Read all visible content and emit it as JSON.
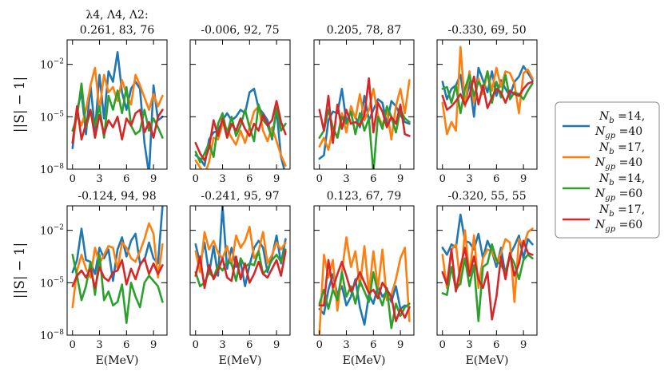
{
  "chart_data": {
    "type": "line",
    "xlabel": "E(MeV)",
    "ylabel": "||S| − 1|",
    "xlim": [
      -0.6,
      10.5
    ],
    "ylim_log10": [
      -8,
      -0.6
    ],
    "xticks": [
      0,
      3,
      6,
      9
    ],
    "yticks": [
      {
        "exp": -8,
        "label": "10−8"
      },
      {
        "exp": -5,
        "label": "10−5"
      },
      {
        "exp": -2,
        "label": "10−2"
      }
    ],
    "title_header": "λ4, Λ4, Λ2:",
    "legend": [
      {
        "line1": "Nb =14,",
        "line2": "Ngp =40",
        "color": "#1f77b4"
      },
      {
        "line1": "Nb =17,",
        "line2": "Ngp =40",
        "color": "#ff7f0e"
      },
      {
        "line1": "Nb =14,",
        "line2": "Ngp =60",
        "color": "#2ca02c"
      },
      {
        "line1": "Nb =17,",
        "line2": "Ngp =60",
        "color": "#d62728"
      }
    ],
    "x": [
      0,
      0.5,
      1,
      1.5,
      2,
      2.5,
      3,
      3.5,
      4,
      4.5,
      5,
      5.5,
      6,
      6.5,
      7,
      7.5,
      8,
      8.5,
      9,
      9.5,
      10
    ],
    "panels": [
      {
        "title": "0.261, 83, 76",
        "series": [
          {
            "name": "Nb=14, Ngp=40",
            "log10": [
              -6.8,
              -4.6,
              -3.6,
              -6.0,
              -3.2,
              -5.8,
              -2.6,
              -5.1,
              -2.4,
              -3.0,
              -1.3,
              -3.6,
              -4.6,
              -3.4,
              -3.0,
              -3.4,
              -6.5,
              -8.3,
              -3.2,
              -5.2,
              -5.0
            ]
          },
          {
            "name": "Nb=17, Ngp=40",
            "log10": [
              -6.5,
              -4.9,
              -5.5,
              -4.6,
              -3.2,
              -2.2,
              -4.6,
              -2.6,
              -3.6,
              -3.3,
              -4.1,
              -2.9,
              -3.7,
              -4.3,
              -2.6,
              -3.2,
              -3.9,
              -4.6,
              -3.7,
              -4.4,
              -3.8
            ]
          },
          {
            "name": "Nb=14, Ngp=60",
            "log10": [
              -5.8,
              -5.0,
              -3.1,
              -5.6,
              -4.7,
              -5.5,
              -4.4,
              -6.2,
              -3.8,
              -4.6,
              -3.5,
              -4.8,
              -3.3,
              -5.5,
              -6.0,
              -5.8,
              -4.6,
              -5.8,
              -5.1,
              -5.6,
              -6.2
            ]
          },
          {
            "name": "Nb=17, Ngp=60",
            "log10": [
              -6.5,
              -4.4,
              -6.3,
              -5.4,
              -4.6,
              -6.2,
              -4.9,
              -6.0,
              -5.2,
              -5.6,
              -5.0,
              -6.3,
              -5.1,
              -5.5,
              -4.8,
              -4.6,
              -5.9,
              -5.3,
              -6.2,
              -5.0,
              -4.6
            ]
          }
        ]
      },
      {
        "title": "-0.006, 92, 75",
        "series": [
          {
            "name": "Nb=14, Ngp=40",
            "log10": [
              -7.2,
              -7.4,
              -7.8,
              -6.3,
              -5.9,
              -5.8,
              -5.2,
              -4.8,
              -5.2,
              -5.0,
              -4.6,
              -4.8,
              -3.6,
              -3.4,
              -4.5,
              -4.8,
              -5.2,
              -6.3,
              -4.6,
              -7.3,
              -8.3
            ]
          },
          {
            "name": "Nb=17, Ngp=40",
            "log10": [
              -7.5,
              -7.9,
              -8.3,
              -7.6,
              -6.2,
              -6.3,
              -5.4,
              -5.7,
              -6.2,
              -6.6,
              -5.8,
              -6.5,
              -5.6,
              -4.7,
              -4.4,
              -5.8,
              -6.4,
              -5.6,
              -6.4,
              -7.2,
              -7.8
            ]
          },
          {
            "name": "Nb=14, Ngp=60",
            "log10": [
              -7.0,
              -7.6,
              -7.1,
              -6.5,
              -7.3,
              -5.4,
              -4.8,
              -6.0,
              -5.0,
              -6.1,
              -5.5,
              -4.6,
              -5.6,
              -6.4,
              -4.3,
              -5.2,
              -5.5,
              -6.2,
              -4.5,
              -5.8,
              -5.4
            ]
          },
          {
            "name": "Nb=17, Ngp=60",
            "log10": [
              -6.5,
              -7.1,
              -7.5,
              -6.8,
              -5.2,
              -6.1,
              -5.1,
              -6.2,
              -5.4,
              -5.8,
              -5.1,
              -5.7,
              -6.1,
              -5.4,
              -5.8,
              -4.9,
              -5.5,
              -5.2,
              -4.1,
              -5.3,
              -6.0
            ]
          }
        ]
      },
      {
        "title": "0.205, 78, 87",
        "series": [
          {
            "name": "Nb=14, Ngp=40",
            "log10": [
              -7.4,
              -7.2,
              -5.2,
              -4.7,
              -4.8,
              -3.4,
              -5.3,
              -4.7,
              -5.0,
              -5.6,
              -3.8,
              -5.2,
              -4.6,
              -4.0,
              -4.2,
              -5.4,
              -4.1,
              -4.4,
              -4.9,
              -5.3,
              -5.4
            ]
          },
          {
            "name": "Nb=17, Ngp=40",
            "log10": [
              -6.7,
              -6.2,
              -6.9,
              -5.7,
              -6.2,
              -4.8,
              -5.9,
              -4.4,
              -5.1,
              -3.7,
              -5.2,
              -4.6,
              -3.4,
              -4.9,
              -5.5,
              -4.6,
              -6.3,
              -4.4,
              -3.4,
              -4.8,
              -2.9
            ]
          },
          {
            "name": "Nb=14, Ngp=60",
            "log10": [
              -6.2,
              -5.8,
              -4.6,
              -5.6,
              -6.2,
              -5.0,
              -5.4,
              -4.7,
              -6.0,
              -4.8,
              -5.8,
              -5.1,
              -8.2,
              -5.0,
              -5.7,
              -4.4,
              -5.0,
              -5.9,
              -4.6,
              -5.1,
              -5.3
            ]
          },
          {
            "name": "Nb=17, Ngp=60",
            "log10": [
              -4.6,
              -5.8,
              -3.8,
              -6.5,
              -4.3,
              -5.7,
              -4.6,
              -5.4,
              -5.3,
              -5.5,
              -4.9,
              -2.8,
              -5.9,
              -4.2,
              -4.7,
              -5.6,
              -5.0,
              -5.4,
              -4.3,
              -6.0,
              -6.1
            ]
          }
        ]
      },
      {
        "title": "-0.330, 69, 50",
        "series": [
          {
            "name": "Nb=14, Ngp=40",
            "log10": [
              -3.0,
              -4.0,
              -3.4,
              -3.2,
              -2.6,
              -4.4,
              -3.0,
              -5.0,
              -2.2,
              -2.9,
              -3.6,
              -2.4,
              -3.8,
              -2.9,
              -3.4,
              -3.8,
              -3.0,
              -2.7,
              -2.1,
              -2.5,
              -2.9
            ]
          },
          {
            "name": "Nb=17, Ngp=40",
            "log10": [
              -4.2,
              -6.0,
              -5.3,
              -5.8,
              -1.0,
              -4.4,
              -2.4,
              -4.2,
              -2.8,
              -3.7,
              -2.4,
              -3.5,
              -2.2,
              -3.3,
              -2.4,
              -2.5,
              -3.1,
              -4.8,
              -2.5,
              -2.3,
              -2.8
            ]
          },
          {
            "name": "Nb=14, Ngp=60",
            "log10": [
              -3.4,
              -3.3,
              -4.2,
              -3.2,
              -4.8,
              -3.4,
              -2.6,
              -3.8,
              -3.0,
              -3.4,
              -2.4,
              -4.2,
              -3.0,
              -3.9,
              -2.6,
              -4.0,
              -3.6,
              -3.7,
              -4.0,
              -3.5,
              -3.1
            ]
          },
          {
            "name": "Nb=17, Ngp=60",
            "log10": [
              -3.8,
              -4.6,
              -4.4,
              -4.1,
              -3.7,
              -4.3,
              -3.8,
              -2.7,
              -4.3,
              -3.2,
              -4.5,
              -3.9,
              -3.4,
              -3.6,
              -4.2,
              -3.5,
              -3.7,
              -3.8,
              -3.4,
              -3.1,
              -3.0
            ]
          }
        ]
      },
      {
        "title": "-0.124, 94, 98",
        "series": [
          {
            "name": "Nb=14, Ngp=40",
            "log10": [
              -4.4,
              -3.7,
              -1.9,
              -3.7,
              -3.8,
              -4.5,
              -3.0,
              -3.6,
              -3.1,
              -4.9,
              -3.1,
              -2.4,
              -3.5,
              -2.6,
              -2.2,
              -3.9,
              -3.7,
              -2.7,
              -3.6,
              -3.9,
              -0.6
            ]
          },
          {
            "name": "Nb=17, Ngp=40",
            "log10": [
              -6.4,
              -4.3,
              -3.4,
              -4.2,
              -4.7,
              -3.0,
              -3.9,
              -3.4,
              -2.9,
              -3.0,
              -4.2,
              -2.7,
              -3.0,
              -3.6,
              -3.8,
              -3.2,
              -2.5,
              -1.6,
              -2.2,
              -4.7,
              -2.8
            ]
          },
          {
            "name": "Nb=14, Ngp=60",
            "log10": [
              -3.4,
              -4.6,
              -6.0,
              -5.2,
              -3.8,
              -5.7,
              -3.4,
              -6.0,
              -5.5,
              -6.3,
              -6.1,
              -5.1,
              -7.3,
              -5.0,
              -5.8,
              -6.4,
              -5.0,
              -4.6,
              -4.9,
              -5.2,
              -6.1
            ]
          },
          {
            "name": "Nb=17, Ngp=60",
            "log10": [
              -5.2,
              -4.6,
              -4.3,
              -4.7,
              -4.2,
              -5.3,
              -4.1,
              -4.7,
              -4.9,
              -4.4,
              -4.3,
              -3.7,
              -5.1,
              -4.2,
              -4.8,
              -4.0,
              -3.6,
              -4.5,
              -3.9,
              -4.5,
              -4.0
            ]
          }
        ]
      },
      {
        "title": "-0.241, 95, 97",
        "series": [
          {
            "name": "Nb=14, Ngp=40",
            "log10": [
              -2.8,
              -3.9,
              -2.7,
              -4.5,
              -2.9,
              -4.6,
              -0.6,
              -4.2,
              -3.0,
              -4.1,
              -3.8,
              -5.2,
              -4.0,
              -3.0,
              -2.6,
              -3.0,
              -4.4,
              -3.5,
              -2.3,
              -3.9,
              -2.5
            ]
          },
          {
            "name": "Nb=17, Ngp=40",
            "log10": [
              -3.2,
              -4.4,
              -2.1,
              -3.1,
              -2.6,
              -3.3,
              -3.6,
              -2.9,
              -4.0,
              -2.3,
              -3.0,
              -2.6,
              -1.8,
              -3.6,
              -3.2,
              -2.1,
              -3.9,
              -3.4,
              -2.7,
              -3.1,
              -2.7
            ]
          },
          {
            "name": "Nb=14, Ngp=60",
            "log10": [
              -4.4,
              -5.2,
              -5.0,
              -4.4,
              -4.7,
              -4.0,
              -4.3,
              -3.8,
              -3.9,
              -4.9,
              -3.6,
              -4.1,
              -3.9,
              -4.0,
              -3.2,
              -4.5,
              -4.2,
              -3.7,
              -3.4,
              -3.8,
              -3.1
            ]
          },
          {
            "name": "Nb=17, Ngp=60",
            "log10": [
              -4.6,
              -3.5,
              -5.3,
              -4.0,
              -4.8,
              -4.3,
              -3.6,
              -4.7,
              -4.9,
              -3.5,
              -4.8,
              -3.9,
              -5.0,
              -4.5,
              -3.8,
              -4.5,
              -4.7,
              -4.2,
              -3.7,
              -4.6,
              -3.2
            ]
          }
        ]
      },
      {
        "title": "0.123, 67, 79",
        "series": [
          {
            "name": "Nb=14, Ngp=40",
            "log10": [
              -6.5,
              -6.8,
              -5.4,
              -4.5,
              -5.7,
              -5.2,
              -6.3,
              -5.8,
              -4.8,
              -6.4,
              -7.4,
              -5.7,
              -6.2,
              -5.2,
              -5.8,
              -5.5,
              -6.1,
              -5.2,
              -6.5,
              -6.3,
              -6.4
            ]
          },
          {
            "name": "Nb=17, Ngp=40",
            "log10": [
              -7.9,
              -3.4,
              -4.7,
              -3.7,
              -6.6,
              -4.4,
              -2.4,
              -4.1,
              -3.2,
              -5.2,
              -2.9,
              -5.6,
              -3.2,
              -5.3,
              -3.1,
              -6.0,
              -5.7,
              -4.8,
              -3.6,
              -3.0,
              -7.2
            ]
          },
          {
            "name": "Nb=14, Ngp=60",
            "log10": [
              -6.2,
              -5.4,
              -6.5,
              -5.4,
              -6.0,
              -4.4,
              -5.8,
              -5.2,
              -6.2,
              -4.9,
              -5.5,
              -6.1,
              -4.4,
              -5.6,
              -6.3,
              -5.3,
              -7.6,
              -6.2,
              -6.9,
              -6.4,
              -6.2
            ]
          },
          {
            "name": "Nb=17, Ngp=60",
            "log10": [
              -6.3,
              -6.3,
              -3.7,
              -5.3,
              -4.5,
              -3.8,
              -4.6,
              -5.5,
              -5.0,
              -4.4,
              -5.0,
              -5.6,
              -5.4,
              -5.9,
              -5.0,
              -5.4,
              -5.8,
              -7.2,
              -6.5,
              -7.0,
              -6.4
            ]
          }
        ]
      },
      {
        "title": "-0.320, 55, 55",
        "series": [
          {
            "name": "Nb=14, Ngp=40",
            "log10": [
              -3.0,
              -3.4,
              -2.8,
              -3.0,
              -1.1,
              -2.6,
              -2.7,
              -3.1,
              -2.2,
              -3.6,
              -2.6,
              -3.2,
              -4.1,
              -3.0,
              -4.6,
              -3.4,
              -2.9,
              -2.3,
              -3.6,
              -2.5,
              -2.8
            ]
          },
          {
            "name": "Nb=17, Ngp=40",
            "log10": [
              -3.4,
              -5.3,
              -3.1,
              -2.8,
              -5.1,
              -2.0,
              -4.6,
              -2.3,
              -5.3,
              -3.6,
              -3.1,
              -3.2,
              -3.8,
              -3.3,
              -2.5,
              -2.7,
              -6.1,
              -2.5,
              -2.9,
              -2.1,
              -1.9
            ]
          },
          {
            "name": "Nb=14, Ngp=60",
            "log10": [
              -5.6,
              -5.7,
              -4.1,
              -5.4,
              -5.0,
              -3.6,
              -5.2,
              -4.0,
              -7.2,
              -4.1,
              -3.9,
              -2.8,
              -3.7,
              -4.0,
              -4.4,
              -3.4,
              -3.9,
              -4.8,
              -3.7,
              -3.4,
              -3.6
            ]
          },
          {
            "name": "Nb=17, Ngp=60",
            "log10": [
              -4.4,
              -5.1,
              -3.1,
              -5.5,
              -4.1,
              -3.0,
              -4.6,
              -3.5,
              -4.8,
              -5.3,
              -4.4,
              -7.1,
              -5.8,
              -3.5,
              -4.8,
              -3.3,
              -4.6,
              -3.9,
              -2.6,
              -3.3,
              -3.4
            ]
          }
        ]
      }
    ]
  }
}
